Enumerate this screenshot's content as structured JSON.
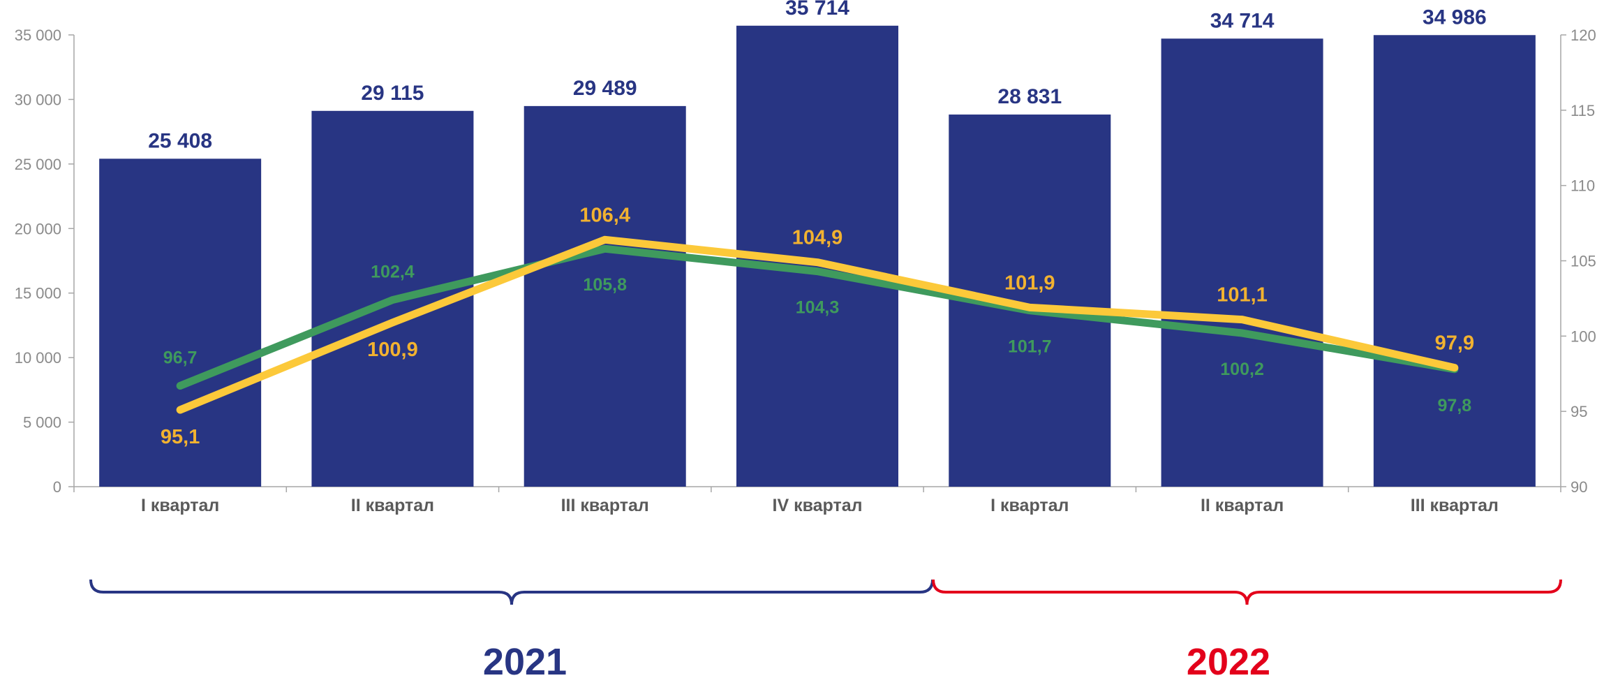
{
  "chart_data": {
    "type": "bar",
    "categories": [
      "I квартал",
      "II квартал",
      "III квартал",
      "IV квартал",
      "I квартал",
      "II квартал",
      "III квартал"
    ],
    "bar_values": [
      25408,
      29115,
      29489,
      35714,
      28831,
      34714,
      34986
    ],
    "bar_labels": [
      "25 408",
      "29 115",
      "29 489",
      "35 714",
      "28 831",
      "34 714",
      "34 986"
    ],
    "y_left": {
      "lim": [
        0,
        35000
      ],
      "ticks": [
        "0",
        "5 000",
        "10 000",
        "15 000",
        "20 000",
        "25 000",
        "30 000",
        "35 000"
      ]
    },
    "y_right": {
      "lim": [
        90,
        120
      ],
      "ticks": [
        "90",
        "95",
        "100",
        "105",
        "110",
        "115",
        "120"
      ]
    },
    "series": [
      {
        "values": [
          96.7,
          102.4,
          105.8,
          104.3,
          101.7,
          100.2,
          97.8
        ],
        "labels": [
          "96,7",
          "102,4",
          "105,8",
          "104,3",
          "101,7",
          "100,2",
          "97,8"
        ]
      },
      {
        "values": [
          95.1,
          100.9,
          106.4,
          104.9,
          101.9,
          101.1,
          97.9
        ],
        "labels": [
          "95,1",
          "100,9",
          "106,4",
          "104,9",
          "101,9",
          "101,1",
          "97,9"
        ]
      }
    ],
    "groups": [
      {
        "label": "2021",
        "from": 0,
        "to": 3
      },
      {
        "label": "2022",
        "from": 4,
        "to": 6
      }
    ],
    "grid": false
  },
  "colors": {
    "bar": "#283583",
    "green": "#3f9a5d",
    "yellow": "#fcc93a",
    "year_2021": "#283583",
    "year_2022": "#e3001b",
    "axis": "#a6a6a6"
  }
}
